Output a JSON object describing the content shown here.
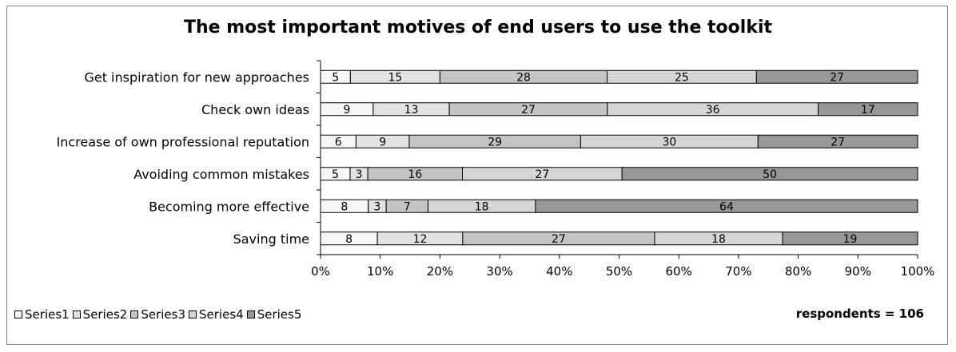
{
  "chart_data": {
    "type": "bar",
    "orientation": "horizontal",
    "stacking": "percent",
    "title": "The most important motives of end users to use the toolkit",
    "categories": [
      "Get inspiration for new approaches",
      "Check own ideas",
      "Increase of own professional reputation",
      "Avoiding common mistakes",
      "Becoming more effective",
      "Saving time"
    ],
    "series": [
      {
        "name": "Series1",
        "color": "#f7f7f7",
        "values": [
          5,
          9,
          6,
          5,
          8,
          8
        ]
      },
      {
        "name": "Series2",
        "color": "#e2e2e2",
        "values": [
          15,
          13,
          9,
          3,
          3,
          12
        ]
      },
      {
        "name": "Series3",
        "color": "#c4c4c4",
        "values": [
          28,
          27,
          29,
          16,
          7,
          27
        ]
      },
      {
        "name": "Series4",
        "color": "#d5d5d5",
        "values": [
          25,
          36,
          30,
          27,
          18,
          18
        ]
      },
      {
        "name": "Series5",
        "color": "#979797",
        "values": [
          27,
          17,
          27,
          50,
          64,
          19
        ]
      }
    ],
    "x_ticks": [
      "0%",
      "10%",
      "20%",
      "30%",
      "40%",
      "50%",
      "60%",
      "70%",
      "80%",
      "90%",
      "100%"
    ],
    "xlim": [
      0,
      100
    ],
    "legend_position": "bottom-left",
    "grid": false,
    "note": "respondents = 106"
  }
}
